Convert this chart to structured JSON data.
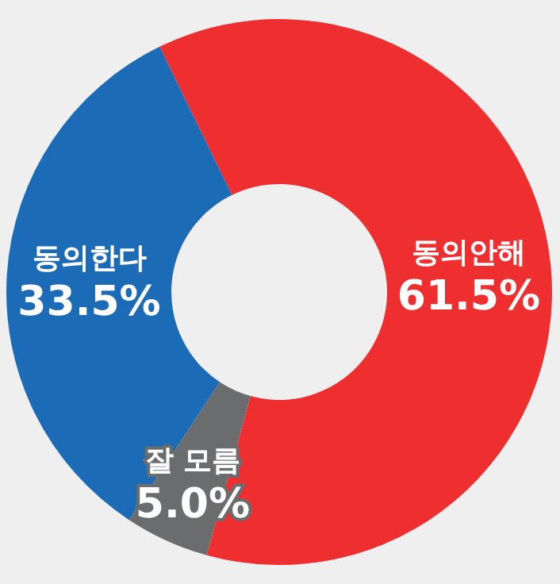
{
  "chart_data": {
    "type": "donut",
    "categories": [
      "동의안해",
      "잘 모름",
      "동의한다"
    ],
    "values": [
      61.5,
      5.0,
      33.5
    ],
    "colors": [
      "#ee2e2f",
      "#6b6c6e",
      "#1c6bb7"
    ],
    "value_labels": [
      "61.5%",
      "5.0%",
      "33.5%"
    ],
    "legend": false
  }
}
